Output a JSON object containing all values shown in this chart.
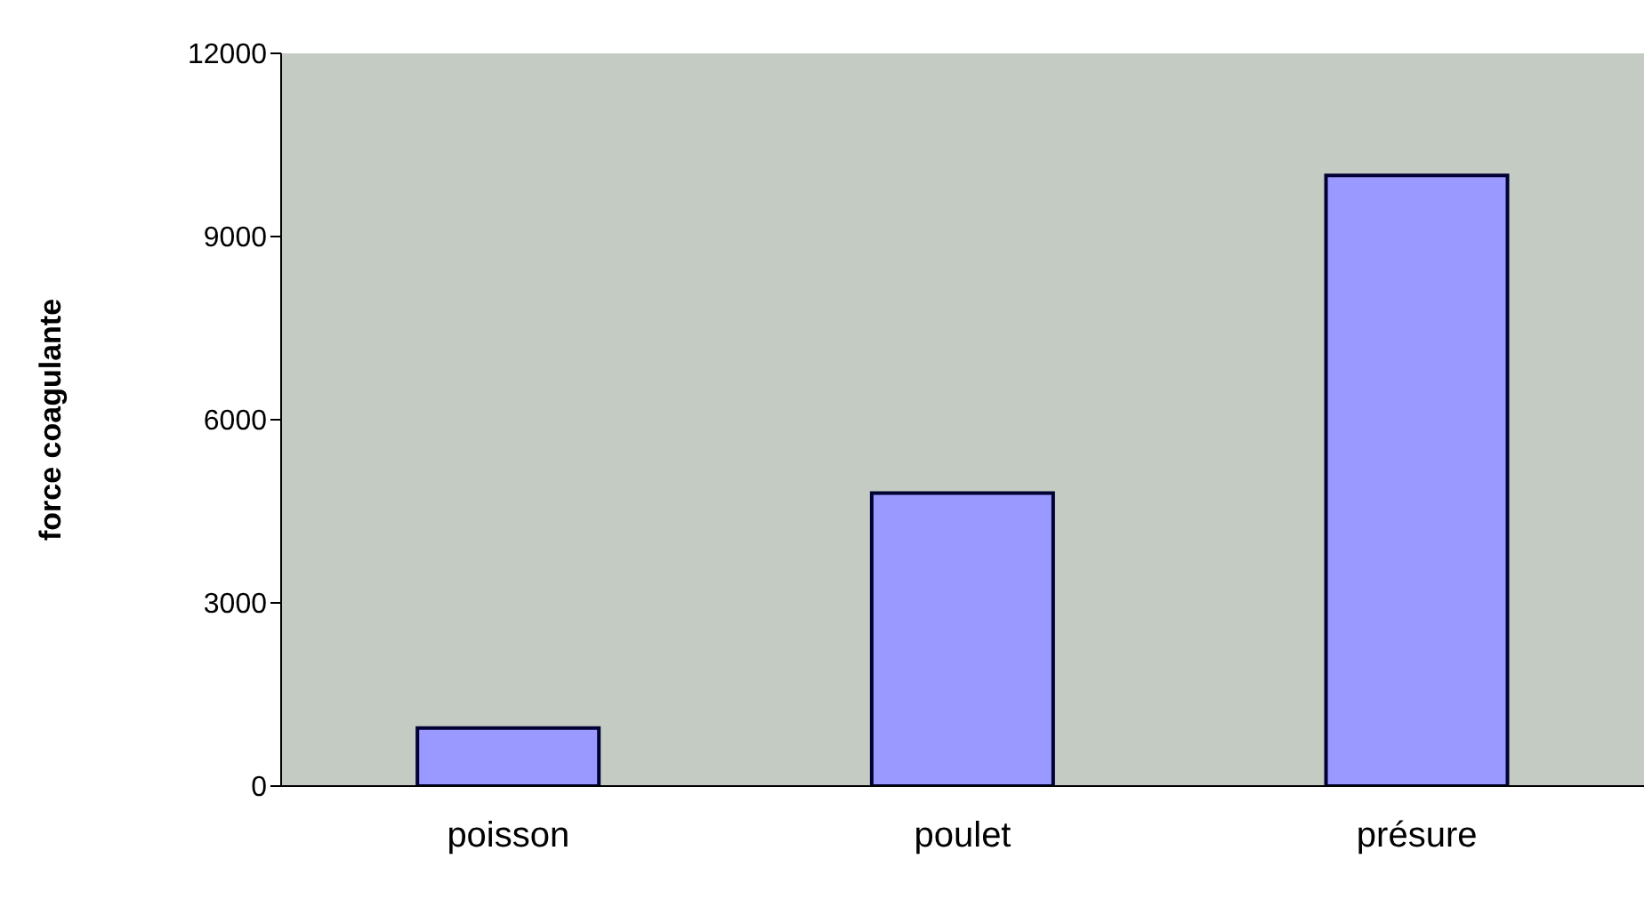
{
  "chart_data": {
    "type": "bar",
    "ylabel": "force coagulante",
    "categories": [
      "poisson",
      "poulet",
      "présure"
    ],
    "values": [
      950,
      4800,
      10000
    ],
    "color": "#9999ff",
    "ylim": [
      0,
      12000
    ],
    "yticks": [
      0,
      3000,
      6000,
      9000,
      12000
    ],
    "grid": false
  }
}
